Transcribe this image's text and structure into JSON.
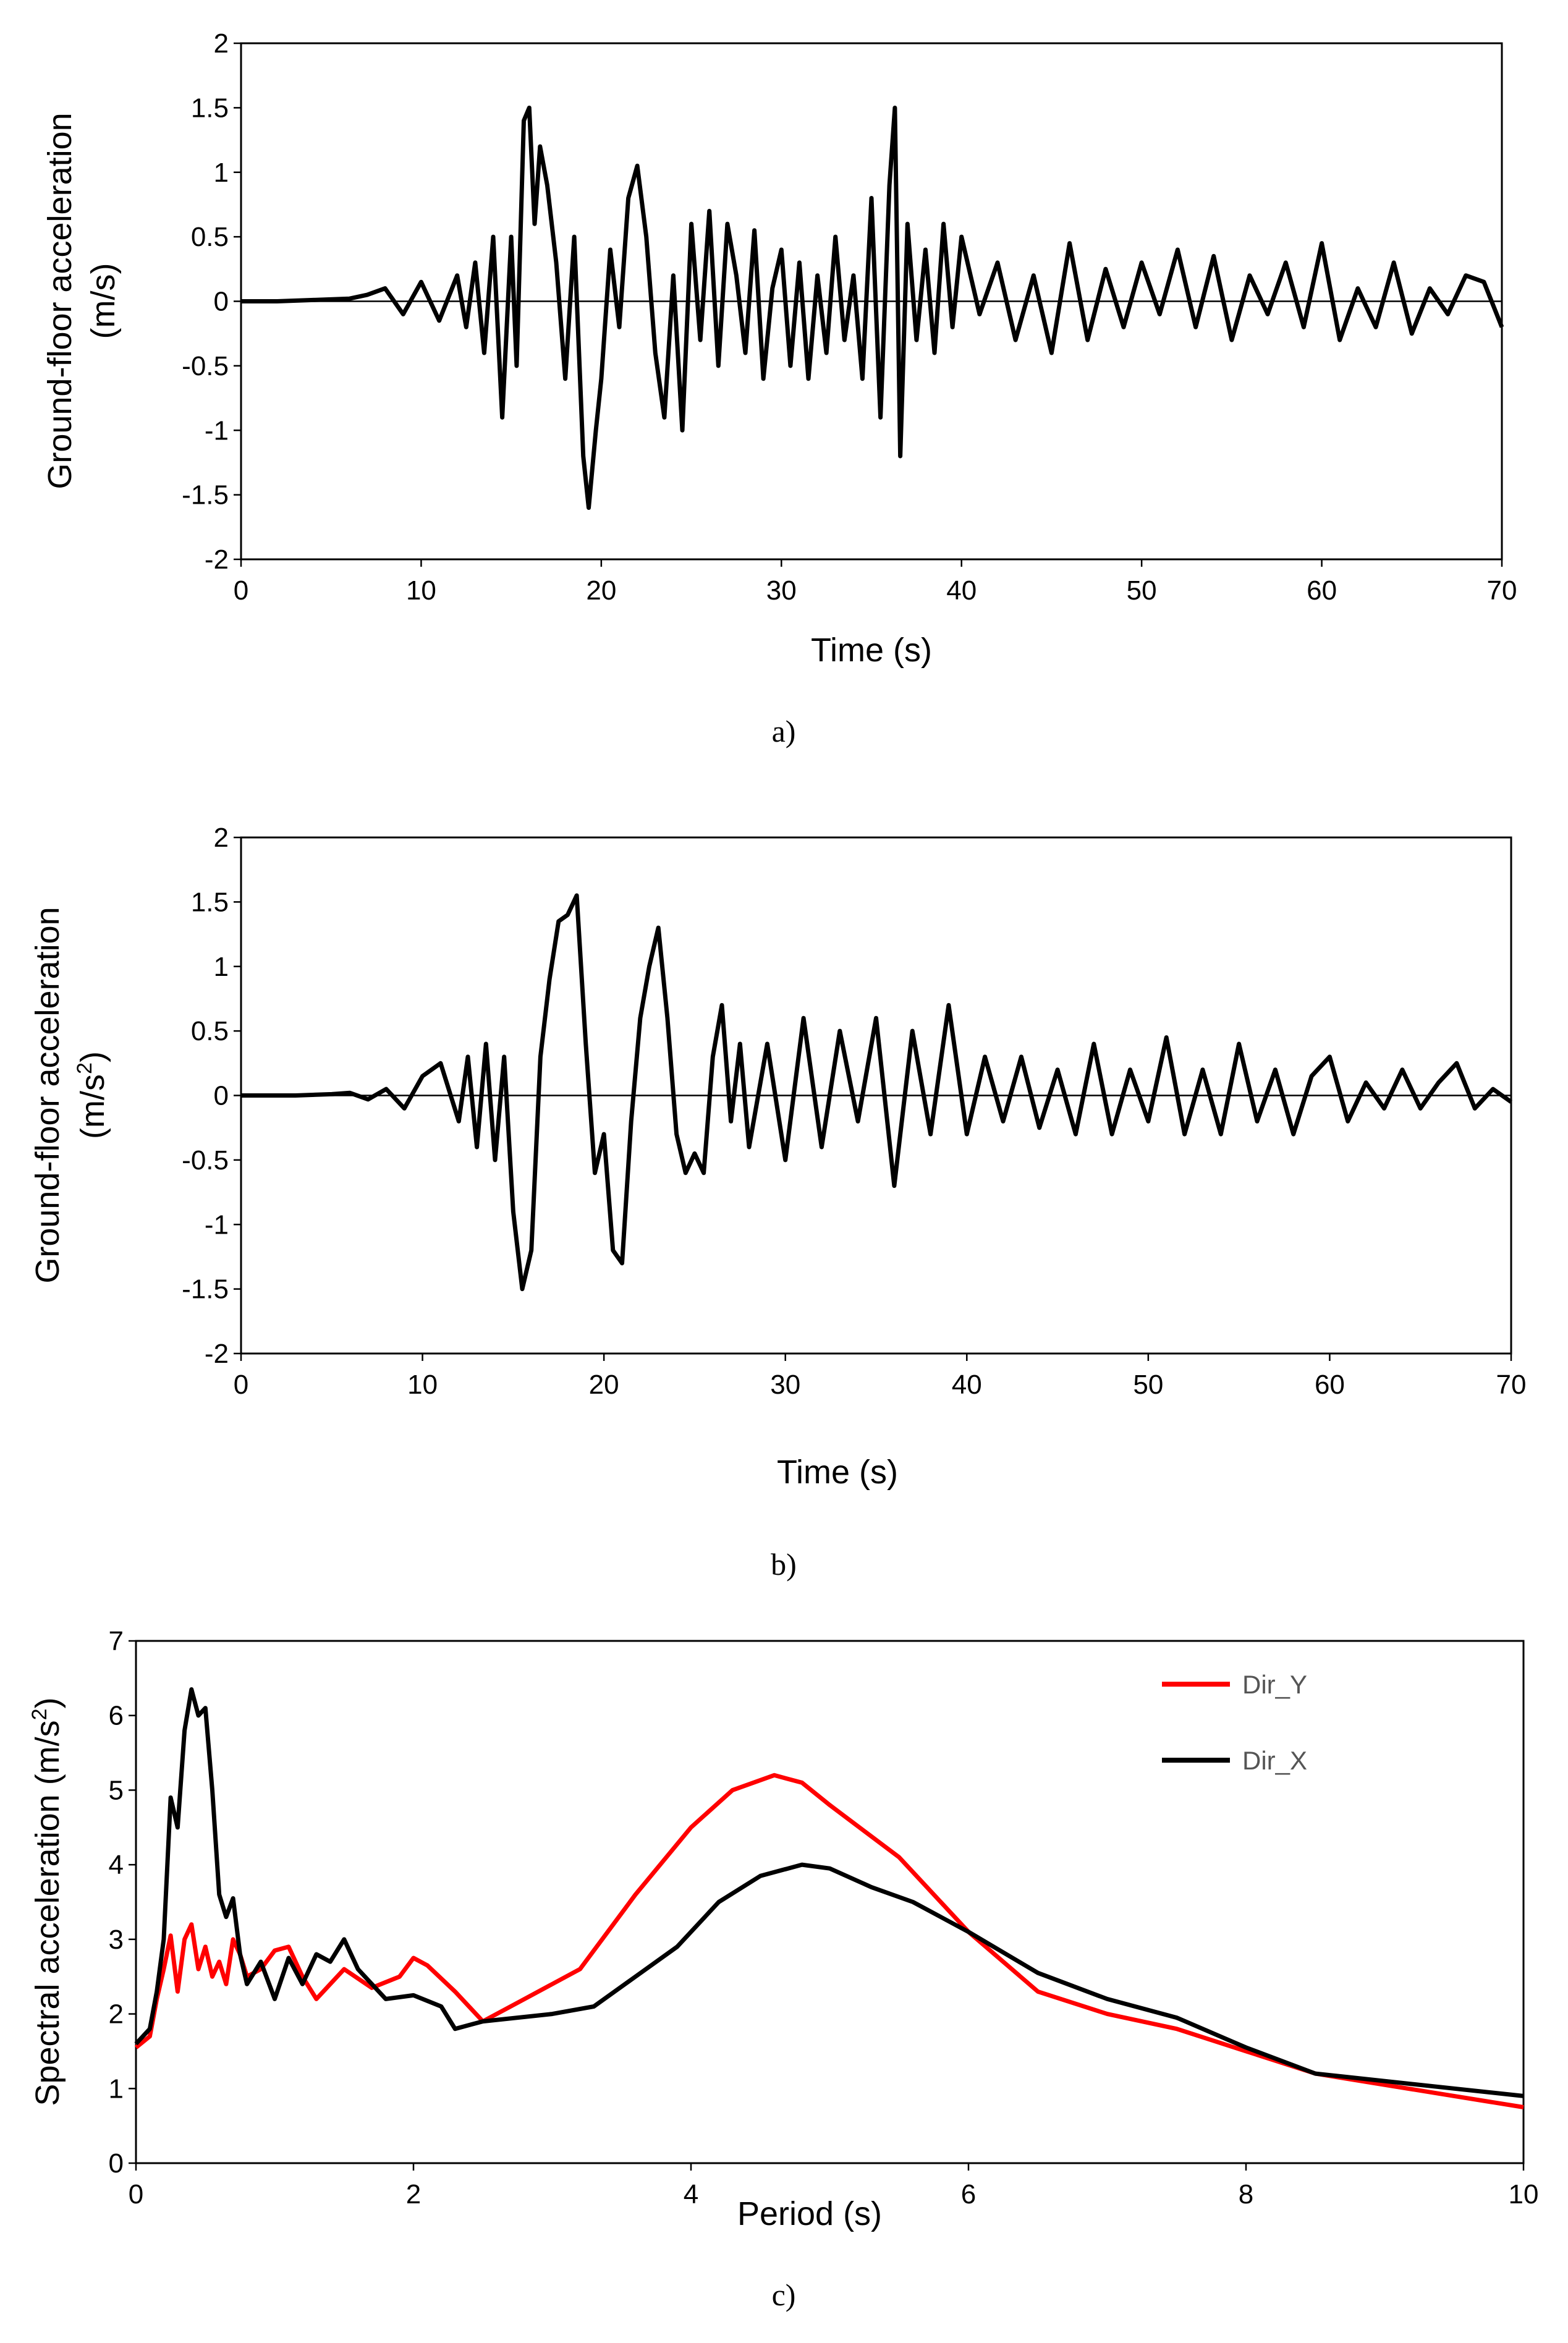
{
  "figure": {
    "captions": [
      "a)",
      "b)",
      "c)"
    ]
  },
  "chart_data": [
    {
      "type": "line",
      "id": "a",
      "title": "",
      "xlabel": "Time (s)",
      "ylabel_line1": "Ground-floor  acceleration",
      "ylabel_line2": "(m/s)",
      "xlim": [
        0,
        70
      ],
      "ylim": [
        -2,
        2
      ],
      "xticks": [
        0,
        10,
        20,
        30,
        40,
        50,
        60,
        70
      ],
      "yticks": [
        -2,
        -1.5,
        -1,
        -0.5,
        0,
        0.5,
        1,
        1.5,
        2
      ],
      "ytick_labels": [
        "-2",
        "-1.5",
        "-1",
        "-0.5",
        "0",
        "0.5",
        "1",
        "1.5",
        "2"
      ],
      "color": "#000000",
      "series": [
        {
          "name": "Ground-floor acceleration",
          "x": [
            0,
            2,
            4,
            6,
            7,
            8,
            9,
            10,
            11,
            12,
            12.5,
            13,
            13.5,
            14,
            14.5,
            15,
            15.3,
            15.7,
            16,
            16.3,
            16.6,
            17,
            17.5,
            18,
            18.5,
            19,
            19.3,
            19.7,
            20,
            20.5,
            21,
            21.5,
            22,
            22.5,
            23,
            23.5,
            24,
            24.5,
            25,
            25.5,
            26,
            26.5,
            27,
            27.5,
            28,
            28.5,
            29,
            29.5,
            30,
            30.5,
            31,
            31.5,
            32,
            32.5,
            33,
            33.5,
            34,
            34.5,
            35,
            35.5,
            36,
            36.3,
            36.6,
            37,
            37.5,
            38,
            38.5,
            39,
            39.5,
            40,
            41,
            42,
            43,
            44,
            45,
            46,
            47,
            48,
            49,
            50,
            51,
            52,
            53,
            54,
            55,
            56,
            57,
            58,
            59,
            60,
            61,
            62,
            63,
            64,
            65,
            66,
            67,
            68,
            69,
            70
          ],
          "values": [
            0,
            0,
            0.01,
            0.02,
            0.05,
            0.1,
            -0.1,
            0.15,
            -0.15,
            0.2,
            -0.2,
            0.3,
            -0.4,
            0.5,
            -0.9,
            0.5,
            -0.5,
            1.4,
            1.5,
            0.6,
            1.2,
            0.9,
            0.3,
            -0.6,
            0.5,
            -1.2,
            -1.6,
            -1.0,
            -0.6,
            0.4,
            -0.2,
            0.8,
            1.05,
            0.5,
            -0.4,
            -0.9,
            0.2,
            -1.0,
            0.6,
            -0.3,
            0.7,
            -0.5,
            0.6,
            0.2,
            -0.4,
            0.55,
            -0.6,
            0.1,
            0.4,
            -0.5,
            0.3,
            -0.6,
            0.2,
            -0.4,
            0.5,
            -0.3,
            0.2,
            -0.6,
            0.8,
            -0.9,
            0.9,
            1.5,
            -1.2,
            0.6,
            -0.3,
            0.4,
            -0.4,
            0.6,
            -0.2,
            0.5,
            -0.1,
            0.3,
            -0.3,
            0.2,
            -0.4,
            0.45,
            -0.3,
            0.25,
            -0.2,
            0.3,
            -0.1,
            0.4,
            -0.2,
            0.35,
            -0.3,
            0.2,
            -0.1,
            0.3,
            -0.2,
            0.45,
            -0.3,
            0.1,
            -0.2,
            0.3,
            -0.25,
            0.1,
            -0.1,
            0.2,
            0.15,
            -0.2
          ]
        }
      ]
    },
    {
      "type": "line",
      "id": "b",
      "title": "",
      "xlabel": "Time (s)",
      "ylabel_line1": "Ground-floor acceleration",
      "ylabel_line2": "(m/s",
      "ylabel_sup": "2",
      "ylabel_close": ")",
      "xlim": [
        0,
        70
      ],
      "ylim": [
        -2,
        2
      ],
      "xticks": [
        0,
        10,
        20,
        30,
        40,
        50,
        60,
        70
      ],
      "yticks": [
        -2,
        -1.5,
        -1,
        -0.5,
        0,
        0.5,
        1,
        1.5,
        2
      ],
      "ytick_labels": [
        "-2",
        "-1.5",
        "-1",
        "-0.5",
        "0",
        "0.5",
        "1",
        "1.5",
        "2"
      ],
      "color": "#000000",
      "series": [
        {
          "name": "Ground-floor acceleration",
          "x": [
            0,
            3,
            5,
            6,
            7,
            8,
            9,
            10,
            11,
            12,
            12.5,
            13,
            13.5,
            14,
            14.5,
            15,
            15.5,
            16,
            16.5,
            17,
            17.5,
            18,
            18.5,
            19,
            19.5,
            20,
            20.5,
            21,
            21.5,
            22,
            22.5,
            23,
            23.5,
            24,
            24.5,
            25,
            25.5,
            26,
            26.5,
            27,
            27.5,
            28,
            29,
            30,
            31,
            32,
            33,
            34,
            35,
            36,
            37,
            38,
            39,
            40,
            41,
            42,
            43,
            44,
            45,
            46,
            47,
            48,
            49,
            50,
            51,
            52,
            53,
            54,
            55,
            56,
            57,
            58,
            59,
            60,
            61,
            62,
            63,
            64,
            65,
            66,
            67,
            68,
            69,
            70
          ],
          "values": [
            0,
            0,
            0.01,
            0.02,
            -0.03,
            0.05,
            -0.1,
            0.15,
            0.25,
            -0.2,
            0.3,
            -0.4,
            0.4,
            -0.5,
            0.3,
            -0.9,
            -1.5,
            -1.2,
            0.3,
            0.9,
            1.35,
            1.4,
            1.55,
            0.4,
            -0.6,
            -0.3,
            -1.2,
            -1.3,
            -0.2,
            0.6,
            1.0,
            1.3,
            0.6,
            -0.3,
            -0.6,
            -0.45,
            -0.6,
            0.3,
            0.7,
            -0.2,
            0.4,
            -0.4,
            0.4,
            -0.5,
            0.6,
            -0.4,
            0.5,
            -0.2,
            0.6,
            -0.7,
            0.5,
            -0.3,
            0.7,
            -0.3,
            0.3,
            -0.2,
            0.3,
            -0.25,
            0.2,
            -0.3,
            0.4,
            -0.3,
            0.2,
            -0.2,
            0.45,
            -0.3,
            0.2,
            -0.3,
            0.4,
            -0.2,
            0.2,
            -0.3,
            0.15,
            0.3,
            -0.2,
            0.1,
            -0.1,
            0.2,
            -0.1,
            0.1,
            0.25,
            -0.1,
            0.05,
            -0.05
          ]
        }
      ]
    },
    {
      "type": "line",
      "id": "c",
      "title": "",
      "xlabel": "Period (s)",
      "ylabel": "Spectral acceleration (m/s",
      "ylabel_sup": "2",
      "ylabel_close": ")",
      "xlim": [
        0,
        10
      ],
      "ylim": [
        0,
        7
      ],
      "xticks": [
        0,
        2,
        4,
        6,
        8,
        10
      ],
      "yticks": [
        0,
        1,
        2,
        3,
        4,
        5,
        6,
        7
      ],
      "legend_position": "top-right",
      "series": [
        {
          "name": "Dir_Y",
          "color": "#ff0000",
          "x": [
            0,
            0.1,
            0.15,
            0.2,
            0.25,
            0.3,
            0.35,
            0.4,
            0.45,
            0.5,
            0.55,
            0.6,
            0.65,
            0.7,
            0.75,
            0.8,
            0.9,
            1.0,
            1.1,
            1.2,
            1.3,
            1.5,
            1.7,
            1.9,
            2.0,
            2.1,
            2.3,
            2.5,
            2.8,
            3.2,
            3.6,
            4.0,
            4.3,
            4.6,
            4.8,
            5.0,
            5.5,
            6.0,
            6.5,
            7.0,
            7.5,
            8.0,
            8.5,
            9.0,
            9.5,
            10.0
          ],
          "values": [
            1.55,
            1.7,
            2.2,
            2.6,
            3.05,
            2.3,
            3.0,
            3.2,
            2.6,
            2.9,
            2.5,
            2.7,
            2.4,
            3.0,
            2.8,
            2.5,
            2.6,
            2.85,
            2.9,
            2.5,
            2.2,
            2.6,
            2.35,
            2.5,
            2.75,
            2.65,
            2.3,
            1.9,
            2.2,
            2.6,
            3.6,
            4.5,
            5.0,
            5.2,
            5.1,
            4.8,
            4.1,
            3.1,
            2.3,
            2.0,
            1.8,
            1.5,
            1.2,
            1.05,
            0.9,
            0.75
          ]
        },
        {
          "name": "Dir_X",
          "color": "#000000",
          "x": [
            0,
            0.1,
            0.15,
            0.2,
            0.25,
            0.3,
            0.35,
            0.4,
            0.45,
            0.5,
            0.55,
            0.6,
            0.65,
            0.7,
            0.75,
            0.8,
            0.9,
            1.0,
            1.1,
            1.2,
            1.3,
            1.4,
            1.5,
            1.6,
            1.8,
            2.0,
            2.2,
            2.3,
            2.5,
            3.0,
            3.3,
            3.6,
            3.9,
            4.2,
            4.5,
            4.8,
            5.0,
            5.3,
            5.6,
            6.0,
            6.5,
            7.0,
            7.5,
            8.0,
            8.5,
            9.0,
            9.5,
            10.0
          ],
          "values": [
            1.6,
            1.8,
            2.3,
            3.0,
            4.9,
            4.5,
            5.8,
            6.35,
            6.0,
            6.1,
            5.0,
            3.6,
            3.3,
            3.55,
            2.8,
            2.4,
            2.7,
            2.2,
            2.75,
            2.4,
            2.8,
            2.7,
            3.0,
            2.6,
            2.2,
            2.25,
            2.1,
            1.8,
            1.9,
            2.0,
            2.1,
            2.5,
            2.9,
            3.5,
            3.85,
            4.0,
            3.95,
            3.7,
            3.5,
            3.1,
            2.55,
            2.2,
            1.95,
            1.55,
            1.2,
            1.1,
            1.0,
            0.9
          ]
        }
      ]
    }
  ]
}
